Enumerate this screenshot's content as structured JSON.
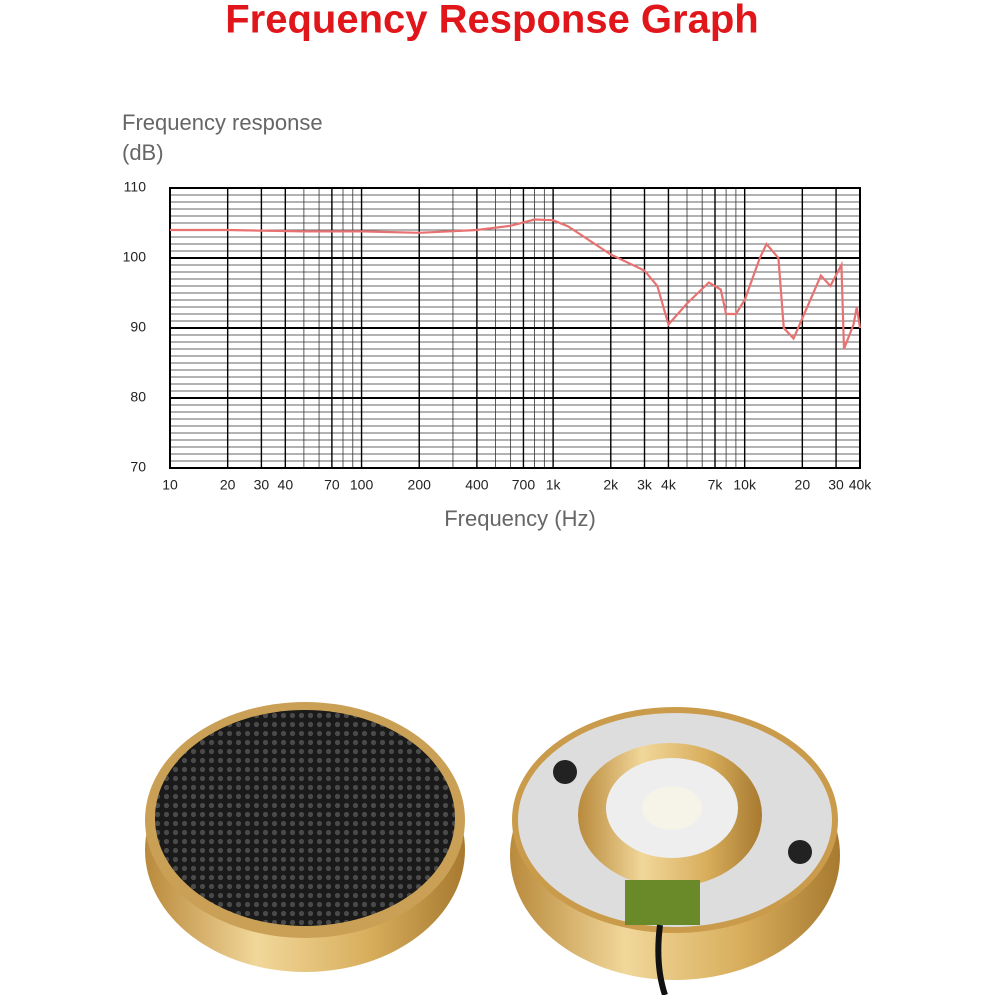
{
  "chart_data": {
    "type": "line",
    "title": "Frequency Response Graph",
    "y_label": [
      "Frequency response",
      "(dB)"
    ],
    "x_label": "Frequency (Hz)",
    "x_scale": "log",
    "grid": true,
    "xlim": [
      10,
      40000
    ],
    "ylim": [
      70,
      110
    ],
    "xticks": [
      10,
      20,
      30,
      40,
      70,
      100,
      200,
      400,
      700,
      {
        "value": 1000,
        "label": "1k"
      },
      {
        "value": 2000,
        "label": "2k"
      },
      {
        "value": 3000,
        "label": "3k"
      },
      {
        "value": 4000,
        "label": "4k"
      },
      {
        "value": 7000,
        "label": "7k"
      },
      {
        "value": 10000,
        "label": "10k"
      },
      {
        "value": 20000,
        "label": "20"
      },
      {
        "value": 30000,
        "label": "30"
      },
      {
        "value": 40000,
        "label": "40k"
      }
    ],
    "yticks": [
      70,
      80,
      90,
      100,
      110
    ],
    "y_minor_step": 1,
    "series": [
      {
        "color": "#e87272",
        "x": [
          10,
          20,
          50,
          100,
          200,
          400,
          600,
          800,
          1000,
          1200,
          2000,
          3000,
          3500,
          4000,
          5000,
          6500,
          7500,
          8000,
          9000,
          10000,
          12000,
          13000,
          15000,
          16000,
          18000,
          22000,
          25000,
          28000,
          32000,
          33000,
          37000,
          38500,
          40000
        ],
        "values": [
          104,
          104,
          103.8,
          103.8,
          103.6,
          104,
          104.6,
          105.5,
          105.4,
          104.5,
          100.5,
          98.2,
          96,
          90.5,
          93.5,
          96.5,
          95.5,
          92,
          92,
          94,
          100,
          102,
          100,
          90,
          88.5,
          94,
          97.5,
          96,
          99,
          87,
          90.5,
          93,
          90
        ]
      }
    ]
  }
}
